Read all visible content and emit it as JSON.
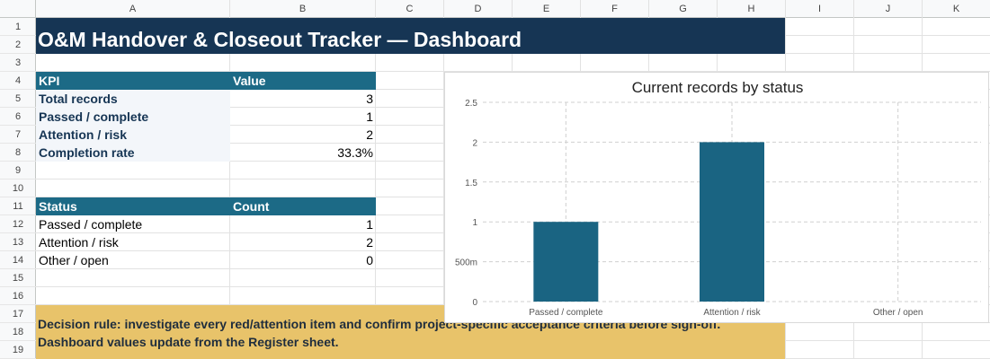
{
  "columns": [
    "A",
    "B",
    "C",
    "D",
    "E",
    "F",
    "G",
    "H",
    "I",
    "J",
    "K"
  ],
  "rows": [
    "1",
    "2",
    "3",
    "4",
    "5",
    "6",
    "7",
    "8",
    "9",
    "10",
    "11",
    "12",
    "13",
    "14",
    "15",
    "16",
    "17",
    "18",
    "19"
  ],
  "title": "O&M Handover & Closeout Tracker — Dashboard",
  "kpi": {
    "header": {
      "label": "KPI",
      "value": "Value"
    },
    "rows": [
      {
        "label": "Total records",
        "value": "3"
      },
      {
        "label": "Passed / complete",
        "value": "1"
      },
      {
        "label": "Attention / risk",
        "value": "2"
      },
      {
        "label": "Completion rate",
        "value": "33.3%"
      }
    ]
  },
  "status": {
    "header": {
      "label": "Status",
      "value": "Count"
    },
    "rows": [
      {
        "label": "Passed / complete",
        "value": "1"
      },
      {
        "label": "Attention / risk",
        "value": "2"
      },
      {
        "label": "Other / open",
        "value": "0"
      }
    ]
  },
  "note": {
    "line1": "Decision rule: investigate every red/attention item and confirm project-specific acceptance criteria before sign-off.",
    "line2": "Dashboard values update from the Register sheet."
  },
  "colors": {
    "title_bg": "#163554",
    "header_bg": "#1c6a86",
    "bar": "#1a6482",
    "note_bg": "#e8c36a"
  },
  "chart_data": {
    "type": "bar",
    "title": "Current records by status",
    "categories": [
      "Passed / complete",
      "Attention / risk",
      "Other / open"
    ],
    "values": [
      1,
      2,
      0
    ],
    "ylim": [
      0,
      2.5
    ],
    "yticks": [
      "0",
      "500m",
      "1",
      "1.5",
      "2",
      "2.5"
    ],
    "ytick_values": [
      0,
      0.5,
      1,
      1.5,
      2,
      2.5
    ],
    "grid": true,
    "xlabel": "",
    "ylabel": ""
  }
}
